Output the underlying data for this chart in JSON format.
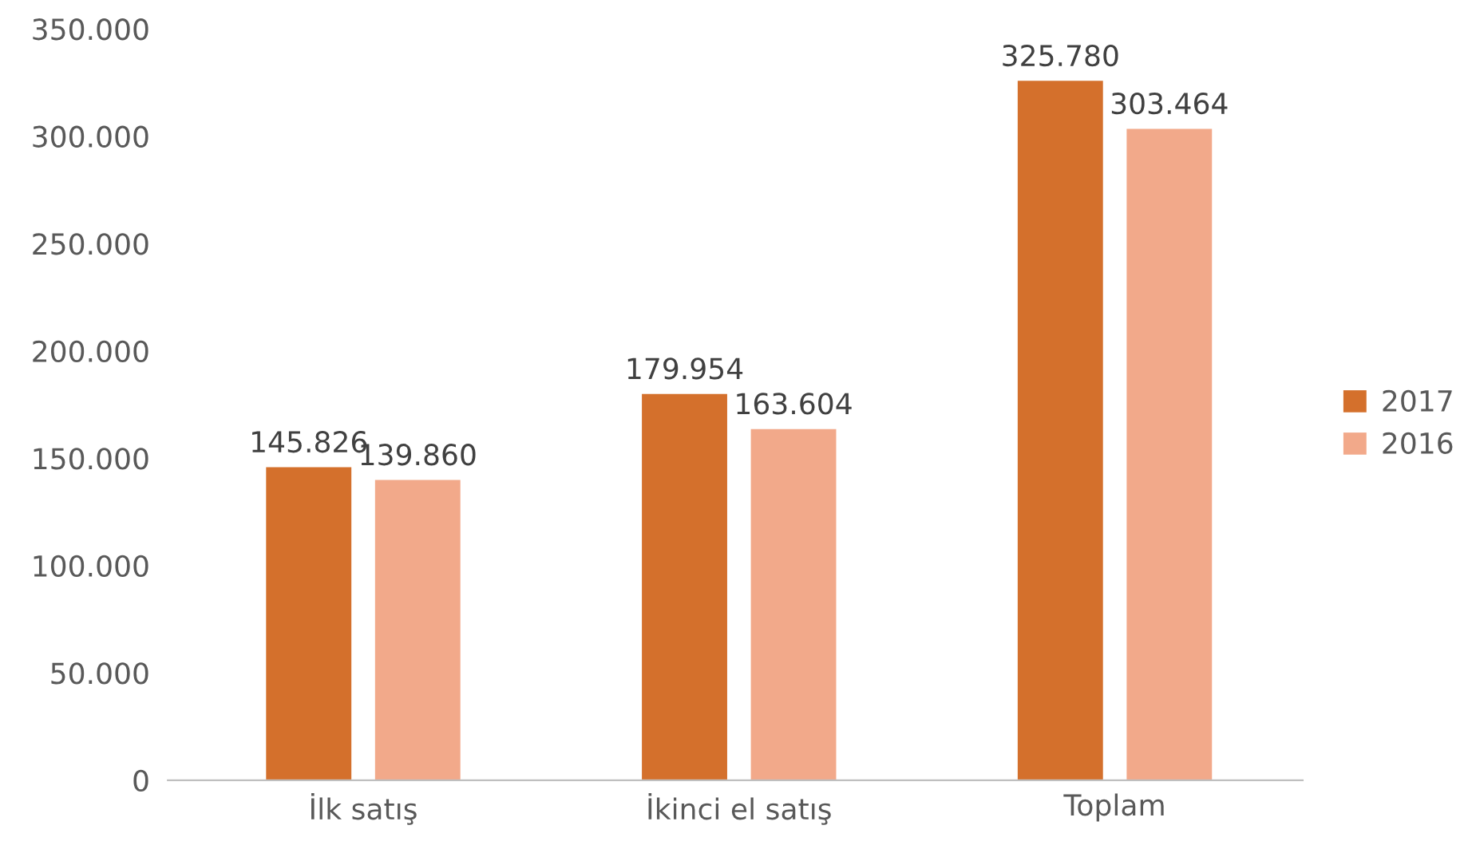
{
  "chart_data": {
    "type": "bar",
    "categories": [
      "İlk satış",
      "İkinci el satış",
      "Toplam"
    ],
    "series": [
      {
        "name": "2017",
        "color": "#d4702c",
        "values": [
          145826,
          179954,
          325780
        ],
        "value_labels": [
          "145.826",
          "179.954",
          "325.780"
        ]
      },
      {
        "name": "2016",
        "color": "#f2a98a",
        "values": [
          139860,
          163604,
          303464
        ],
        "value_labels": [
          "139.860",
          "163.604",
          "303.464"
        ]
      }
    ],
    "ylim": [
      0,
      350000
    ],
    "yticks": [
      0,
      {
        "value": 50000,
        "label": "50.000"
      },
      {
        "value": 100000,
        "label": "100.000"
      },
      {
        "value": 150000,
        "label": "150.000"
      },
      {
        "value": 200000,
        "label": "200.000"
      },
      {
        "value": 250000,
        "label": "250.000"
      },
      {
        "value": 300000,
        "label": "300.000"
      },
      {
        "value": 350000,
        "label": "350.000"
      }
    ],
    "grid": false,
    "legend": "right"
  }
}
